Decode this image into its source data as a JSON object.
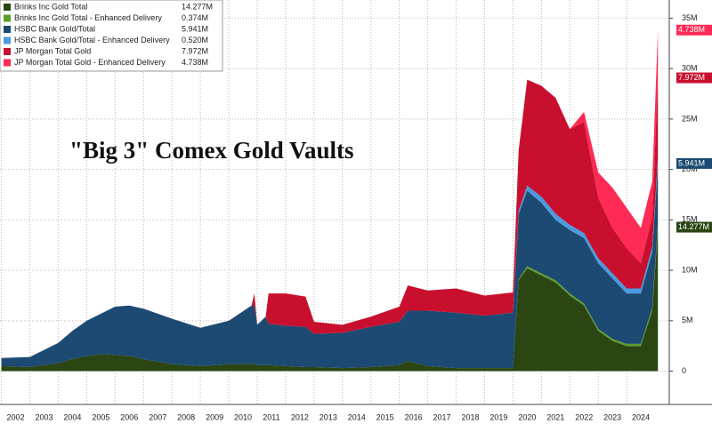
{
  "chart_data": {
    "type": "stacked_area",
    "annotation": "\"Big 3\" Comex Gold Vaults",
    "x": [
      2002.0,
      2003.0,
      2004.0,
      2004.5,
      2005.0,
      2005.5,
      2006.0,
      2006.5,
      2007.0,
      2008.0,
      2009.0,
      2010.0,
      2010.8,
      2010.9,
      2011.0,
      2011.3,
      2011.4,
      2012.0,
      2012.7,
      2013.0,
      2014.0,
      2015.0,
      2016.0,
      2016.3,
      2017.0,
      2018.0,
      2019.0,
      2020.0,
      2020.2,
      2020.5,
      2021.0,
      2021.5,
      2022.0,
      2022.5,
      2023.0,
      2023.5,
      2024.0,
      2024.5,
      2024.9,
      2025.1
    ],
    "series": [
      {
        "name": "Brinks Inc Gold Total",
        "color": "#2b4513",
        "last_label": "14.277M",
        "show_tag": true,
        "values": [
          0.5,
          0.4,
          0.8,
          1.2,
          1.5,
          1.7,
          1.6,
          1.5,
          1.2,
          0.7,
          0.5,
          0.7,
          0.7,
          0.7,
          0.6,
          0.6,
          0.6,
          0.5,
          0.4,
          0.4,
          0.3,
          0.4,
          0.6,
          1.0,
          0.5,
          0.3,
          0.3,
          0.3,
          9.0,
          10.2,
          9.5,
          8.8,
          7.5,
          6.5,
          4.0,
          3.0,
          2.5,
          2.5,
          6.0,
          14.277
        ]
      },
      {
        "name": "Brinks Inc Gold Total - Enhanced Delivery",
        "color": "#5a9e2a",
        "last_label": "0.374M",
        "show_tag": false,
        "values": [
          0,
          0,
          0,
          0,
          0,
          0,
          0,
          0,
          0,
          0,
          0,
          0,
          0,
          0,
          0,
          0,
          0,
          0,
          0,
          0,
          0,
          0,
          0,
          0,
          0,
          0,
          0,
          0,
          0.1,
          0.2,
          0.2,
          0.2,
          0.2,
          0.2,
          0.2,
          0.2,
          0.2,
          0.2,
          0.3,
          0.374
        ]
      },
      {
        "name": "HSBC Bank Gold/Total",
        "color": "#1d4a72",
        "last_label": "5.941M",
        "show_tag": true,
        "values": [
          0.8,
          1.0,
          2.0,
          2.8,
          3.5,
          4.0,
          4.8,
          5.0,
          5.0,
          4.5,
          3.8,
          4.3,
          5.8,
          5.8,
          4.0,
          4.8,
          4.1,
          4.0,
          4.0,
          3.3,
          3.5,
          4.0,
          4.3,
          5.0,
          5.5,
          5.5,
          5.2,
          5.5,
          6.5,
          7.5,
          7.0,
          6.0,
          6.3,
          6.5,
          6.5,
          6.0,
          5.0,
          5.0,
          5.5,
          5.941
        ]
      },
      {
        "name": "HSBC Bank Gold/Total - Enhanced Delivery",
        "color": "#4a9be0",
        "last_label": "0.520M",
        "show_tag": false,
        "values": [
          0,
          0,
          0,
          0,
          0,
          0,
          0,
          0,
          0,
          0,
          0,
          0,
          0,
          0,
          0,
          0,
          0,
          0,
          0,
          0,
          0,
          0,
          0,
          0,
          0,
          0,
          0,
          0,
          0.3,
          0.5,
          0.6,
          0.6,
          0.5,
          0.5,
          0.5,
          0.5,
          0.5,
          0.5,
          0.5,
          0.52
        ]
      },
      {
        "name": "JP Morgan Total Gold",
        "color": "#c8102e",
        "last_label": "7.972M",
        "show_tag": true,
        "values": [
          0,
          0,
          0,
          0,
          0,
          0,
          0,
          0,
          0,
          0,
          0,
          0,
          0,
          1.2,
          0,
          0,
          3.0,
          3.2,
          3.0,
          1.2,
          0.8,
          1.0,
          1.5,
          2.5,
          2.0,
          2.4,
          2.0,
          2.0,
          6.0,
          10.5,
          11.0,
          11.5,
          9.5,
          11.0,
          6.0,
          4.5,
          4.0,
          2.5,
          3.0,
          7.972
        ]
      },
      {
        "name": "JP Morgan Total Gold - Enhanced Delivery",
        "color": "#ff2a55",
        "last_label": "4.738M",
        "show_tag": true,
        "values": [
          0,
          0,
          0,
          0,
          0,
          0,
          0,
          0,
          0,
          0,
          0,
          0,
          0,
          0,
          0,
          0,
          0,
          0,
          0,
          0,
          0,
          0,
          0,
          0,
          0,
          0,
          0,
          0,
          0,
          0,
          0,
          0,
          0,
          1.0,
          2.5,
          4.0,
          4.0,
          3.5,
          3.5,
          4.738
        ]
      }
    ],
    "xlim": [
      2001.95,
      2025.5
    ],
    "xticks": [
      2002,
      2003,
      2004,
      2005,
      2006,
      2007,
      2008,
      2009,
      2010,
      2011,
      2012,
      2013,
      2014,
      2015,
      2016,
      2017,
      2018,
      2019,
      2020,
      2021,
      2022,
      2023,
      2024
    ],
    "ylim": [
      -3.3,
      36.8
    ],
    "yticks": [
      0,
      {
        "value": 5,
        "label": "5M"
      },
      {
        "value": 10,
        "label": "10M"
      },
      {
        "value": 15,
        "label": "15M"
      },
      {
        "value": 20,
        "label": "20M"
      },
      {
        "value": 25,
        "label": "25M"
      },
      {
        "value": 30,
        "label": "30M"
      },
      {
        "value": 35,
        "label": "35M"
      }
    ],
    "grid": true
  }
}
